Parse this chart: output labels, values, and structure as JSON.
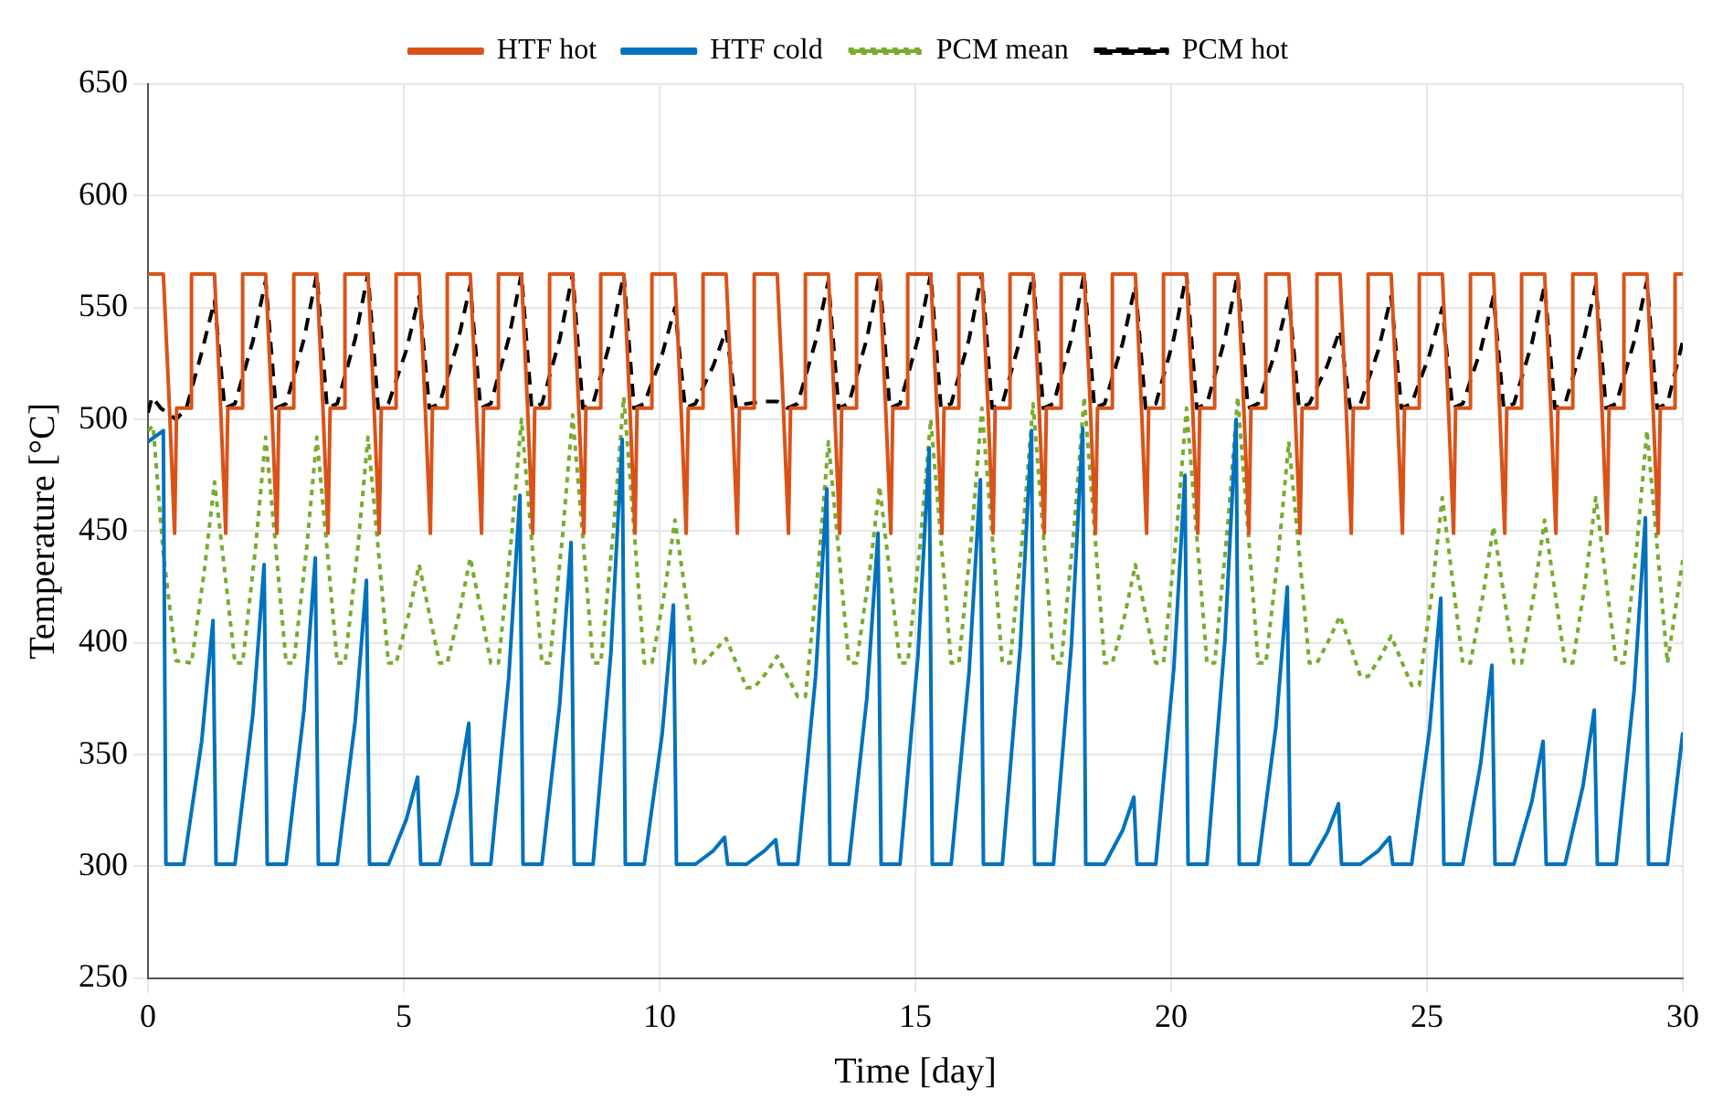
{
  "chart_data": {
    "type": "line",
    "xlabel": "Time [day]",
    "ylabel": "Temperature [°C]",
    "xlim": [
      0,
      30
    ],
    "xticks": [
      0,
      5,
      10,
      15,
      20,
      25,
      30
    ],
    "ylim": [
      250,
      650
    ],
    "yticks": [
      250,
      300,
      350,
      400,
      450,
      500,
      550,
      600,
      650
    ],
    "grid": true,
    "legend": "top",
    "marker": "none",
    "series": [
      {
        "name": "HTF hot",
        "color": "#d95319",
        "line_style": "solid",
        "x": [
          0,
          0.3,
          0.42,
          0.52,
          0.56,
          0.83,
          0.85,
          1.3,
          1.42,
          1.52,
          1.56,
          1.83,
          1.85,
          2.3,
          2.42,
          2.52,
          2.56,
          2.83,
          2.85,
          3.3,
          3.42,
          3.52,
          3.56,
          3.83,
          3.85,
          4.3,
          4.42,
          4.52,
          4.56,
          4.83,
          4.85,
          5.3,
          5.42,
          5.52,
          5.56,
          5.83,
          5.85,
          6.3,
          6.42,
          6.52,
          6.56,
          6.83,
          6.85,
          7.3,
          7.42,
          7.52,
          7.56,
          7.83,
          7.85,
          8.3,
          8.42,
          8.52,
          8.56,
          8.83,
          8.85,
          9.3,
          9.42,
          9.52,
          9.56,
          9.83,
          9.85,
          10.3,
          10.42,
          10.52,
          10.56,
          10.83,
          10.85,
          11.3,
          11.42,
          11.52,
          11.56,
          11.83,
          11.85,
          12.3,
          12.42,
          12.52,
          12.56,
          12.83,
          12.85,
          13.3,
          13.42,
          13.52,
          13.56,
          13.83,
          13.85,
          14.3,
          14.42,
          14.52,
          14.56,
          14.83,
          14.85,
          15.3,
          15.42,
          15.52,
          15.56,
          15.83,
          15.85,
          16.3,
          16.42,
          16.52,
          16.56,
          16.83,
          16.85,
          17.3,
          17.42,
          17.52,
          17.56,
          17.83,
          17.85,
          18.3,
          18.42,
          18.52,
          18.56,
          18.83,
          18.85,
          19.3,
          19.42,
          19.52,
          19.56,
          19.83,
          19.85,
          20.3,
          20.42,
          20.52,
          20.56,
          20.83,
          20.85,
          21.3,
          21.42,
          21.52,
          21.56,
          21.83,
          21.85,
          22.3,
          22.42,
          22.52,
          22.56,
          22.83,
          22.85,
          23.3,
          23.42,
          23.52,
          23.56,
          23.83,
          23.85,
          24.3,
          24.42,
          24.52,
          24.56,
          24.83,
          24.85,
          25.3,
          25.42,
          25.52,
          25.56,
          25.83,
          25.85,
          26.3,
          26.42,
          26.52,
          26.56,
          26.83,
          26.85,
          27.3,
          27.42,
          27.52,
          27.56,
          27.83,
          27.85,
          28.3,
          28.42,
          28.52,
          28.56,
          28.83,
          28.85,
          29.3,
          29.42,
          29.52,
          29.56,
          29.83,
          29.85,
          30
        ],
        "values": [
          565,
          565,
          505,
          449,
          505,
          505,
          565,
          565,
          505,
          449,
          505,
          505,
          565,
          565,
          505,
          449,
          505,
          505,
          565,
          565,
          505,
          449,
          505,
          505,
          565,
          565,
          505,
          449,
          505,
          505,
          565,
          565,
          505,
          449,
          505,
          505,
          565,
          565,
          505,
          449,
          505,
          505,
          565,
          565,
          505,
          449,
          505,
          505,
          565,
          565,
          505,
          449,
          505,
          505,
          565,
          565,
          505,
          449,
          505,
          505,
          565,
          565,
          505,
          449,
          505,
          505,
          565,
          565,
          505,
          449,
          505,
          505,
          565,
          565,
          505,
          449,
          505,
          505,
          565,
          565,
          505,
          449,
          505,
          505,
          565,
          565,
          505,
          449,
          505,
          505,
          565,
          565,
          505,
          449,
          505,
          505,
          565,
          565,
          505,
          449,
          505,
          505,
          565,
          565,
          505,
          449,
          505,
          505,
          565,
          565,
          505,
          449,
          505,
          505,
          565,
          565,
          505,
          449,
          505,
          505,
          565,
          565,
          505,
          449,
          505,
          505,
          565,
          565,
          505,
          449,
          505,
          505,
          565,
          565,
          505,
          449,
          505,
          505,
          565,
          565,
          505,
          449,
          505,
          505,
          565,
          565,
          505,
          449,
          505,
          505,
          565,
          565,
          505,
          449,
          505,
          505,
          565,
          565,
          505,
          449,
          505,
          505,
          565,
          565,
          505,
          449,
          505,
          505,
          565,
          565,
          505,
          449,
          505,
          505,
          565,
          565,
          505,
          449,
          505,
          505,
          565,
          565
        ]
      },
      {
        "name": "HTF cold",
        "color": "#0072bd",
        "line_style": "solid",
        "x": [
          0,
          0.3,
          0.35,
          0.7,
          1.05,
          1.27,
          1.33,
          1.7,
          2.05,
          2.27,
          2.33,
          2.7,
          3.05,
          3.27,
          3.33,
          3.7,
          4.05,
          4.27,
          4.33,
          4.7,
          5.05,
          5.27,
          5.33,
          5.7,
          6.05,
          6.27,
          6.33,
          6.7,
          7.05,
          7.27,
          7.33,
          7.7,
          8.05,
          8.27,
          8.33,
          8.7,
          9.05,
          9.27,
          9.33,
          9.7,
          10.05,
          10.27,
          10.33,
          10.7,
          11.05,
          11.27,
          11.33,
          11.7,
          12.05,
          12.27,
          12.33,
          12.7,
          13.05,
          13.27,
          13.33,
          13.7,
          14.05,
          14.27,
          14.33,
          14.7,
          15.05,
          15.27,
          15.33,
          15.7,
          16.05,
          16.27,
          16.33,
          16.7,
          17.05,
          17.27,
          17.33,
          17.7,
          18.05,
          18.27,
          18.33,
          18.7,
          19.05,
          19.27,
          19.33,
          19.7,
          20.05,
          20.27,
          20.33,
          20.7,
          21.05,
          21.27,
          21.33,
          21.7,
          22.05,
          22.27,
          22.33,
          22.7,
          23.05,
          23.27,
          23.33,
          23.7,
          24.05,
          24.27,
          24.33,
          24.7,
          25.05,
          25.27,
          25.33,
          25.7,
          26.05,
          26.27,
          26.33,
          26.7,
          27.05,
          27.27,
          27.33,
          27.7,
          28.05,
          28.27,
          28.33,
          28.7,
          29.05,
          29.27,
          29.33,
          29.7,
          30
        ],
        "values": [
          490,
          495,
          301,
          301,
          356,
          410,
          301,
          301,
          368,
          435,
          301,
          301,
          370,
          438,
          301,
          301,
          365,
          428,
          301,
          301,
          321,
          340,
          301,
          301,
          333,
          364,
          301,
          301,
          384,
          466,
          301,
          301,
          373,
          445,
          301,
          301,
          396,
          491,
          301,
          301,
          359,
          417,
          301,
          301,
          307,
          313,
          301,
          301,
          307,
          312,
          301,
          301,
          385,
          469,
          301,
          301,
          375,
          449,
          301,
          301,
          394,
          487,
          301,
          301,
          387,
          473,
          301,
          301,
          398,
          495,
          301,
          301,
          399,
          496,
          301,
          301,
          316,
          331,
          301,
          301,
          388,
          475,
          301,
          301,
          401,
          500,
          301,
          301,
          363,
          425,
          301,
          301,
          315,
          328,
          301,
          301,
          307,
          313,
          301,
          301,
          361,
          420,
          301,
          301,
          346,
          390,
          301,
          301,
          329,
          356,
          301,
          301,
          336,
          370,
          301,
          301,
          379,
          456,
          301,
          301,
          360
        ]
      },
      {
        "name": "PCM mean",
        "color": "#77ac30",
        "line_style": "dotted",
        "x": [
          0,
          0.1,
          0.3,
          0.55,
          0.85,
          1.1,
          1.3,
          1.5,
          1.7,
          1.85,
          2.1,
          2.3,
          2.5,
          2.7,
          2.85,
          3.1,
          3.3,
          3.5,
          3.7,
          3.85,
          4.1,
          4.3,
          4.5,
          4.7,
          4.85,
          5.1,
          5.3,
          5.5,
          5.7,
          5.85,
          6.1,
          6.3,
          6.5,
          6.7,
          6.85,
          7.1,
          7.3,
          7.5,
          7.7,
          7.85,
          8.1,
          8.3,
          8.5,
          8.7,
          8.85,
          9.1,
          9.3,
          9.5,
          9.7,
          9.85,
          10.1,
          10.3,
          10.5,
          10.7,
          10.85,
          11.1,
          11.3,
          11.5,
          11.7,
          11.85,
          12.1,
          12.3,
          12.5,
          12.7,
          12.85,
          13.1,
          13.3,
          13.5,
          13.7,
          13.85,
          14.1,
          14.3,
          14.5,
          14.7,
          14.85,
          15.1,
          15.3,
          15.5,
          15.7,
          15.85,
          16.1,
          16.3,
          16.5,
          16.7,
          16.85,
          17.1,
          17.3,
          17.5,
          17.7,
          17.85,
          18.1,
          18.3,
          18.5,
          18.7,
          18.85,
          19.1,
          19.3,
          19.5,
          19.7,
          19.85,
          20.1,
          20.3,
          20.5,
          20.7,
          20.85,
          21.1,
          21.3,
          21.5,
          21.7,
          21.85,
          22.1,
          22.3,
          22.5,
          22.7,
          22.85,
          23.1,
          23.3,
          23.5,
          23.7,
          23.85,
          24.1,
          24.3,
          24.5,
          24.7,
          24.85,
          25.1,
          25.3,
          25.5,
          25.7,
          25.85,
          26.1,
          26.3,
          26.5,
          26.7,
          26.85,
          27.1,
          27.3,
          27.5,
          27.7,
          27.85,
          28.1,
          28.3,
          28.5,
          28.7,
          28.85,
          29.1,
          29.3,
          29.5,
          29.7,
          30
        ],
        "values": [
          495,
          497,
          440,
          392,
          391,
          432,
          472,
          432,
          391,
          391,
          442,
          492,
          442,
          391,
          391,
          442,
          492,
          442,
          391,
          391,
          442,
          492,
          442,
          391,
          391,
          413,
          435,
          413,
          391,
          391,
          415,
          438,
          415,
          391,
          391,
          446,
          500,
          446,
          391,
          391,
          447,
          502,
          447,
          391,
          391,
          451,
          510,
          451,
          391,
          391,
          423,
          455,
          423,
          391,
          391,
          397,
          402,
          391,
          380,
          380,
          387,
          394,
          385,
          376,
          376,
          433,
          490,
          441,
          391,
          391,
          431,
          470,
          431,
          391,
          391,
          446,
          500,
          446,
          391,
          391,
          448,
          505,
          448,
          391,
          391,
          449,
          507,
          449,
          391,
          391,
          451,
          510,
          451,
          391,
          391,
          413,
          435,
          413,
          391,
          391,
          448,
          505,
          448,
          391,
          391,
          451,
          510,
          451,
          391,
          391,
          441,
          490,
          441,
          391,
          391,
          402,
          412,
          399,
          385,
          385,
          394,
          403,
          392,
          381,
          381,
          423,
          465,
          428,
          391,
          391,
          422,
          452,
          422,
          391,
          391,
          423,
          455,
          423,
          391,
          391,
          428,
          465,
          428,
          391,
          391,
          443,
          495,
          443,
          391,
          437
        ]
      },
      {
        "name": "PCM hot",
        "color": "#000000",
        "line_style": "dashed",
        "x": [
          0,
          0.08,
          0.25,
          0.55,
          0.75,
          1.05,
          1.3,
          1.5,
          1.7,
          2.05,
          2.3,
          2.5,
          2.7,
          3.05,
          3.3,
          3.5,
          3.7,
          4.05,
          4.3,
          4.5,
          4.7,
          5.05,
          5.3,
          5.5,
          5.7,
          6.05,
          6.3,
          6.5,
          6.7,
          7.05,
          7.3,
          7.5,
          7.7,
          8.05,
          8.3,
          8.5,
          8.7,
          9.05,
          9.3,
          9.5,
          9.7,
          10.05,
          10.3,
          10.5,
          10.7,
          11.05,
          11.3,
          11.5,
          11.7,
          12.05,
          12.3,
          12.5,
          12.7,
          13.05,
          13.3,
          13.5,
          13.7,
          14.05,
          14.3,
          14.5,
          14.7,
          15.05,
          15.3,
          15.5,
          15.7,
          16.05,
          16.3,
          16.5,
          16.7,
          17.05,
          17.3,
          17.5,
          17.7,
          18.05,
          18.3,
          18.5,
          18.7,
          19.05,
          19.3,
          19.5,
          19.7,
          20.05,
          20.3,
          20.5,
          20.7,
          21.05,
          21.3,
          21.5,
          21.7,
          22.05,
          22.3,
          22.5,
          22.7,
          23.05,
          23.3,
          23.5,
          23.7,
          24.05,
          24.3,
          24.5,
          24.7,
          25.05,
          25.3,
          25.5,
          25.7,
          26.05,
          26.3,
          26.5,
          26.7,
          27.05,
          27.3,
          27.5,
          27.7,
          28.05,
          28.3,
          28.5,
          28.7,
          29.05,
          29.3,
          29.5,
          29.7,
          30
        ],
        "values": [
          503,
          510,
          505,
          500,
          505,
          530,
          553,
          505,
          507,
          535,
          562,
          505,
          507,
          536,
          565,
          505,
          507,
          536,
          565,
          505,
          507,
          531,
          555,
          505,
          507,
          534,
          560,
          505,
          507,
          536,
          565,
          505,
          507,
          536,
          565,
          505,
          507,
          536,
          565,
          505,
          507,
          529,
          550,
          505,
          507,
          524,
          540,
          505,
          507,
          508,
          508,
          505,
          507,
          535,
          562,
          505,
          507,
          536,
          565,
          505,
          507,
          536,
          565,
          505,
          507,
          536,
          565,
          505,
          507,
          536,
          565,
          505,
          507,
          536,
          565,
          505,
          507,
          534,
          560,
          505,
          507,
          536,
          565,
          505,
          507,
          536,
          565,
          505,
          507,
          531,
          555,
          505,
          507,
          524,
          540,
          505,
          507,
          531,
          555,
          505,
          507,
          529,
          550,
          505,
          507,
          531,
          555,
          505,
          507,
          534,
          560,
          505,
          507,
          534,
          560,
          505,
          507,
          535,
          562,
          505,
          507,
          535
        ]
      }
    ]
  }
}
